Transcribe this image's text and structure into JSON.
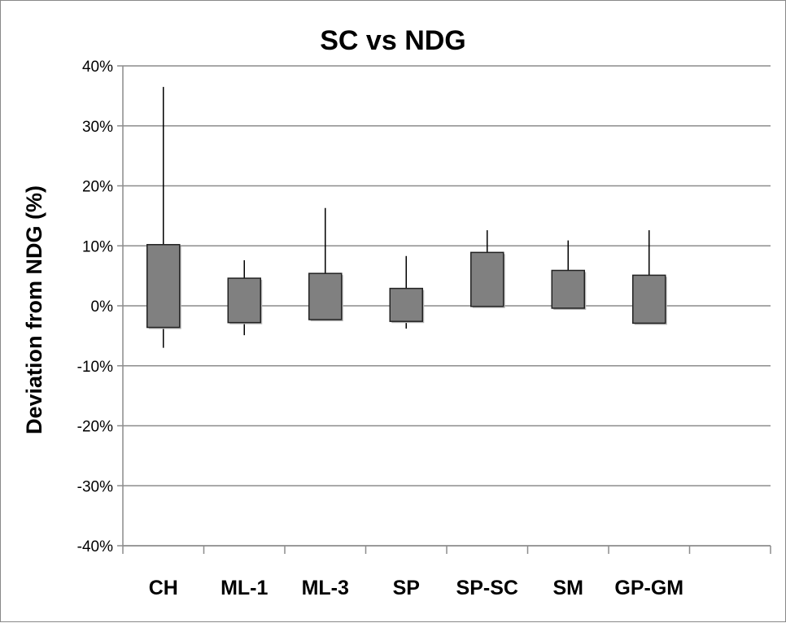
{
  "chart_data": {
    "type": "box",
    "title": "SC vs NDG",
    "xlabel": "",
    "ylabel": "Deviation from NDG (%)",
    "ylim": [
      -40,
      40
    ],
    "yticks": [
      40,
      30,
      20,
      10,
      0,
      -10,
      -20,
      -30,
      -40
    ],
    "ytick_labels": [
      "40%",
      "30%",
      "20%",
      "10%",
      "0%",
      "-10%",
      "-20%",
      "-30%",
      "-40%"
    ],
    "grid": true,
    "legend": "none",
    "categories": [
      "CH",
      "ML-1",
      "ML-3",
      "SP",
      "SP-SC",
      "SM",
      "GP-GM",
      ""
    ],
    "boxes": [
      {
        "category": "CH",
        "whisker_high": 36.5,
        "box_high": 10.2,
        "box_low": -3.6,
        "whisker_low": -7.0
      },
      {
        "category": "ML-1",
        "whisker_high": 7.6,
        "box_high": 4.6,
        "box_low": -2.8,
        "whisker_low": -4.9
      },
      {
        "category": "ML-3",
        "whisker_high": 16.3,
        "box_high": 5.4,
        "box_low": -2.3,
        "whisker_low": -2.3
      },
      {
        "category": "SP",
        "whisker_high": 8.3,
        "box_high": 2.9,
        "box_low": -2.6,
        "whisker_low": -3.8
      },
      {
        "category": "SP-SC",
        "whisker_high": 12.6,
        "box_high": 8.9,
        "box_low": -0.1,
        "whisker_low": -0.1
      },
      {
        "category": "SM",
        "whisker_high": 10.9,
        "box_high": 5.9,
        "box_low": -0.4,
        "whisker_low": -0.4
      },
      {
        "category": "GP-GM",
        "whisker_high": 12.6,
        "box_high": 5.1,
        "box_low": -2.9,
        "whisker_low": -2.9
      }
    ],
    "colors": {
      "box_fill": "#808080",
      "box_stroke": "#222222",
      "box_shadow": "#b8b8b8",
      "whisker": "#000000",
      "grid": "#8c8c8c",
      "axis": "#8c8c8c"
    }
  }
}
